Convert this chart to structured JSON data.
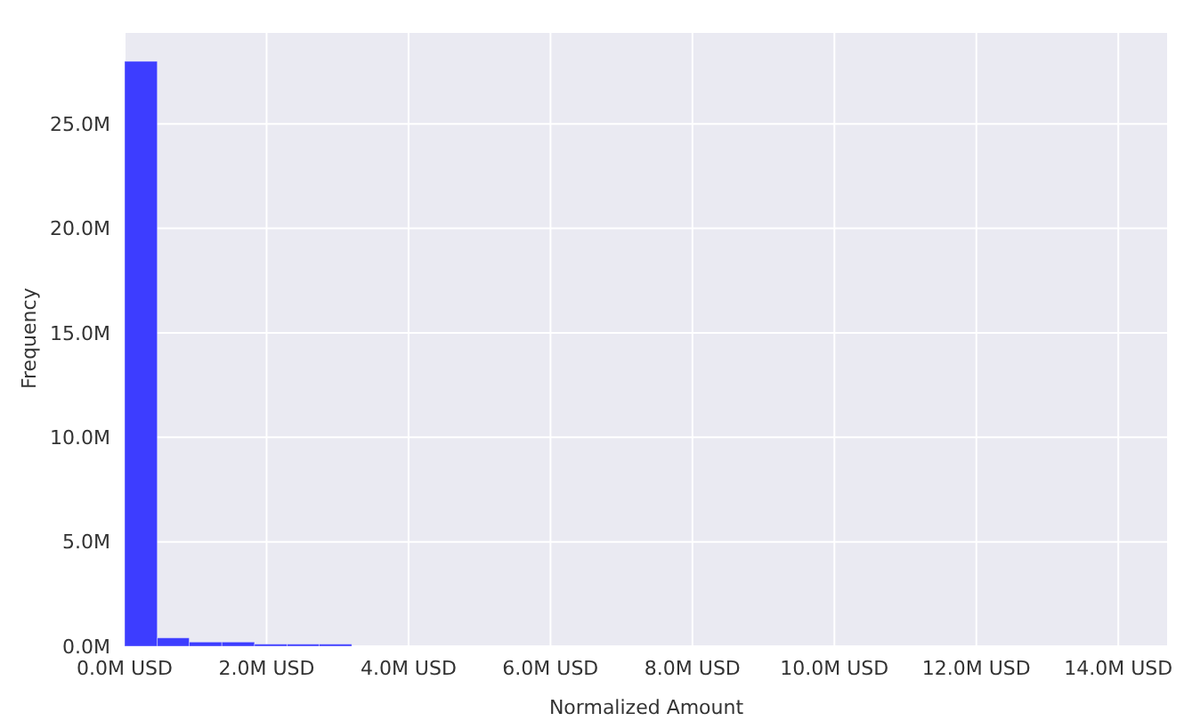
{
  "chart_data": {
    "type": "histogram",
    "xlabel": "Normalized Amount",
    "ylabel": "Frequency",
    "bins": [
      0,
      0.46,
      0.91,
      1.37,
      1.83,
      2.29,
      2.74,
      3.2
    ],
    "values": [
      28.0,
      0.4,
      0.2,
      0.2,
      0.1,
      0.1,
      0.1
    ],
    "color": "#3d3dff",
    "xlim": [
      0,
      14.7
    ],
    "xticks": [
      {
        "value": 0,
        "label": "0.0M USD"
      },
      {
        "value": 2,
        "label": "2.0M USD"
      },
      {
        "value": 4,
        "label": "4.0M USD"
      },
      {
        "value": 6,
        "label": "6.0M USD"
      },
      {
        "value": 8,
        "label": "8.0M USD"
      },
      {
        "value": 10,
        "label": "10.0M USD"
      },
      {
        "value": 12,
        "label": "12.0M USD"
      },
      {
        "value": 14,
        "label": "14.0M USD"
      }
    ],
    "ylim": [
      0,
      29.4
    ],
    "yticks": [
      {
        "value": 0,
        "label": "0.0M"
      },
      {
        "value": 5,
        "label": "5.0M"
      },
      {
        "value": 10,
        "label": "10.0M"
      },
      {
        "value": 15,
        "label": "15.0M"
      },
      {
        "value": 20,
        "label": "20.0M"
      },
      {
        "value": 25,
        "label": "25.0M"
      }
    ],
    "grid": true,
    "legend": false
  }
}
